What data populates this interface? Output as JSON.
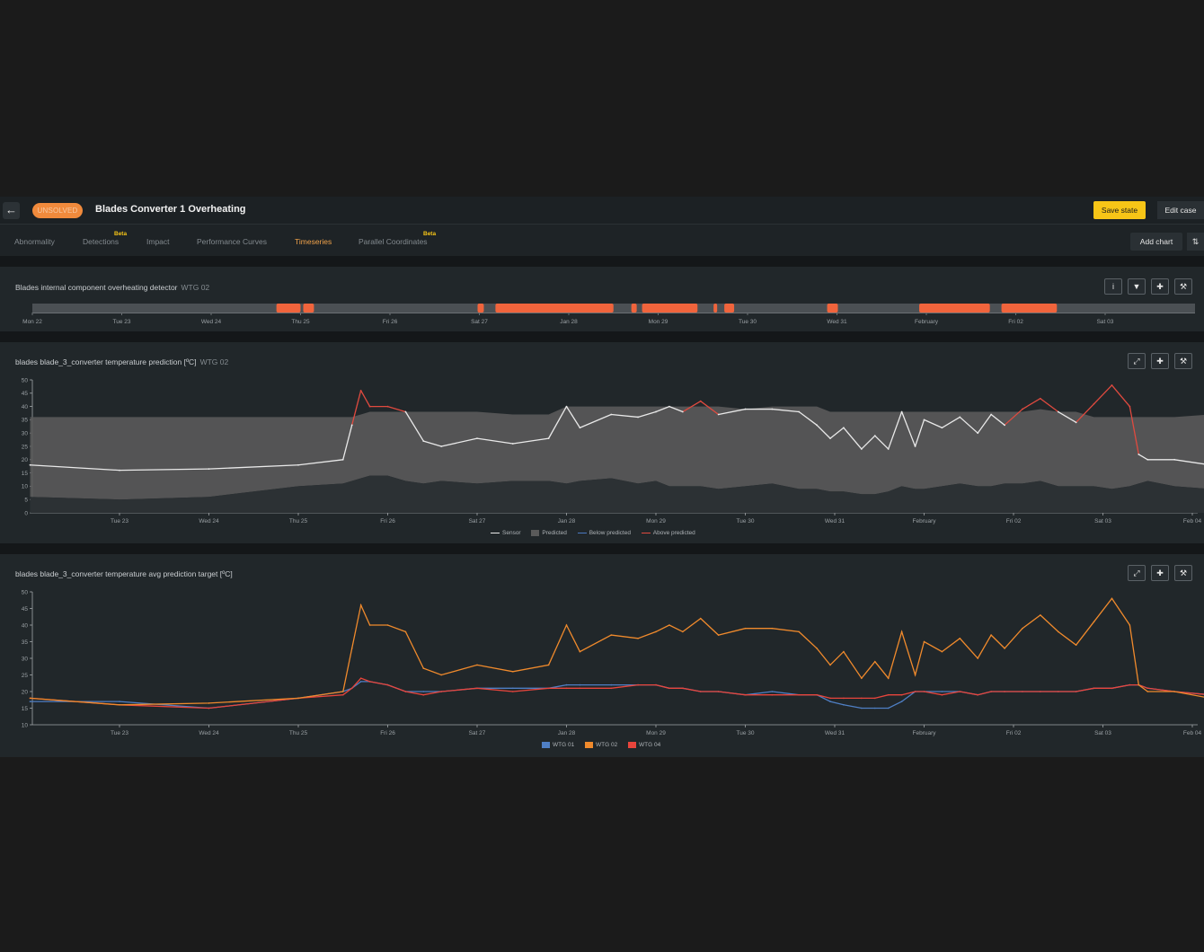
{
  "header": {
    "back_icon": "arrow-left-icon",
    "status": "UNSOLVED",
    "title": "Blades Converter 1 Overheating",
    "save_label": "Save state",
    "edit_label": "Edit case"
  },
  "tabs": [
    {
      "label": "Abnormality",
      "active": false,
      "beta": ""
    },
    {
      "label": "Detections",
      "active": false,
      "beta": "Beta"
    },
    {
      "label": "Impact",
      "active": false,
      "beta": ""
    },
    {
      "label": "Performance Curves",
      "active": false,
      "beta": ""
    },
    {
      "label": "Timeseries",
      "active": true,
      "beta": ""
    },
    {
      "label": "Parallel Coordinates",
      "active": false,
      "beta": "Beta"
    }
  ],
  "toolbar": {
    "add_chart_label": "Add chart",
    "sort_icon": "sort-arrows-icon"
  },
  "colors": {
    "accent": "#f7c517",
    "detection": "#f0643c",
    "sensor": "#e9e9e9",
    "predicted": "#5a5a5a",
    "below": "#4a78c0",
    "above": "#e04a3f",
    "wtg01": "#4f7fc4",
    "wtg02": "#f08a2c",
    "wtg04": "#e8453c"
  },
  "detector": {
    "title": "Blades internal component overheating detector",
    "turbine": "WTG 02",
    "icons": [
      "info-icon",
      "filter-icon",
      "move-icon",
      "wrench-icon"
    ],
    "ticks": [
      "Mon 22",
      "Tue 23",
      "Wed 24",
      "Thu 25",
      "Fri 26",
      "Sat 27",
      "Jan 28",
      "Mon 29",
      "Tue 30",
      "Wed 31",
      "February",
      "Fri 02",
      "Sat 03"
    ],
    "events": [
      [
        2.73,
        3.0
      ],
      [
        3.03,
        3.15
      ],
      [
        4.98,
        5.05
      ],
      [
        5.18,
        6.5
      ],
      [
        6.7,
        6.76
      ],
      [
        6.82,
        7.44
      ],
      [
        7.62,
        7.66
      ],
      [
        7.74,
        7.85
      ],
      [
        8.89,
        9.01
      ],
      [
        9.92,
        10.71
      ],
      [
        10.84,
        11.46
      ]
    ]
  },
  "prediction_chart": {
    "title": "blades blade_3_converter temperature prediction [ºC]",
    "turbine": "WTG 02",
    "icons": [
      "expand-icon",
      "move-icon",
      "wrench-icon"
    ],
    "legend": [
      "Sensor",
      "Predicted",
      "Below predicted",
      "Above predicted"
    ]
  },
  "avg_chart": {
    "title": "blades blade_3_converter temperature avg prediction target [ºC]",
    "icons": [
      "expand-icon",
      "move-icon",
      "wrench-icon"
    ],
    "legend": [
      "WTG 01",
      "WTG 02",
      "WTG 04"
    ]
  },
  "chart_data": [
    {
      "type": "area",
      "x_ticks": [
        "Tue 23",
        "Wed 24",
        "Thu 25",
        "Fri 26",
        "Sat 27",
        "Jan 28",
        "Mon 29",
        "Tue 30",
        "Wed 31",
        "February",
        "Fri 02",
        "Sat 03",
        "Feb 04"
      ],
      "ylim": [
        0,
        50
      ],
      "y_ticks": [
        0,
        5,
        10,
        15,
        20,
        25,
        30,
        35,
        40,
        45,
        50
      ],
      "x_days": [
        -1.0,
        0.0,
        1.0,
        2.0,
        2.5,
        2.6,
        2.7,
        2.8,
        3.0,
        3.2,
        3.4,
        3.6,
        4.0,
        4.4,
        4.8,
        5.0,
        5.15,
        5.5,
        5.8,
        6.0,
        6.15,
        6.3,
        6.5,
        6.7,
        7.0,
        7.3,
        7.6,
        7.8,
        7.95,
        8.1,
        8.3,
        8.45,
        8.6,
        8.75,
        8.9,
        9.0,
        9.2,
        9.4,
        9.6,
        9.75,
        9.9,
        10.1,
        10.3,
        10.5,
        10.7,
        10.9,
        11.1,
        11.3,
        11.4,
        11.5,
        11.8,
        12.2,
        12.5,
        12.85,
        13.0
      ],
      "series": [
        {
          "name": "Sensor",
          "values": [
            18,
            16,
            16.5,
            18,
            20,
            33,
            46,
            40,
            40,
            38,
            27,
            25,
            28,
            26,
            28,
            40,
            32,
            37,
            36,
            38,
            40,
            38,
            42,
            37,
            39,
            39,
            38,
            33,
            28,
            32,
            24,
            29,
            24,
            38,
            25,
            35,
            32,
            36,
            30,
            37,
            33,
            39,
            43,
            38,
            34,
            41,
            48,
            40,
            22,
            20,
            20,
            18,
            18,
            16,
            16.5
          ]
        },
        {
          "name": "Predicted (upper)",
          "values": [
            36,
            36,
            36,
            36,
            36,
            36,
            37,
            38,
            38,
            38,
            38,
            38,
            38,
            37,
            37,
            40,
            40,
            40,
            40,
            40,
            40,
            40,
            40,
            40,
            39,
            40,
            40,
            40,
            38,
            38,
            38,
            38,
            38,
            38,
            38,
            38,
            38,
            38,
            38,
            38,
            38,
            38,
            39,
            38,
            38,
            36,
            36,
            36,
            36,
            36,
            36,
            37,
            36,
            36,
            36
          ]
        },
        {
          "name": "Predicted (lower)",
          "values": [
            6,
            5,
            6,
            10,
            11,
            12,
            13,
            14,
            14,
            12,
            11,
            12,
            11,
            12,
            12,
            11,
            12,
            13,
            11,
            12,
            10,
            10,
            10,
            9,
            10,
            11,
            9,
            9,
            8,
            8,
            7,
            7,
            8,
            10,
            9,
            9,
            10,
            11,
            10,
            10,
            11,
            11,
            12,
            10,
            10,
            10,
            9,
            10,
            11,
            12,
            10,
            9,
            8,
            7,
            8
          ]
        }
      ]
    },
    {
      "type": "line",
      "x_ticks": [
        "Tue 23",
        "Wed 24",
        "Thu 25",
        "Fri 26",
        "Sat 27",
        "Jan 28",
        "Mon 29",
        "Tue 30",
        "Wed 31",
        "February",
        "Fri 02",
        "Sat 03",
        "Feb 04"
      ],
      "ylim": [
        10,
        50
      ],
      "y_ticks": [
        10,
        15,
        20,
        25,
        30,
        35,
        40,
        45,
        50
      ],
      "x_days": [
        -1.0,
        0.0,
        1.0,
        2.0,
        2.5,
        2.6,
        2.7,
        2.8,
        3.0,
        3.2,
        3.4,
        3.6,
        4.0,
        4.4,
        4.8,
        5.0,
        5.15,
        5.5,
        5.8,
        6.0,
        6.15,
        6.3,
        6.5,
        6.7,
        7.0,
        7.3,
        7.6,
        7.8,
        7.95,
        8.1,
        8.3,
        8.45,
        8.6,
        8.75,
        8.9,
        9.0,
        9.2,
        9.4,
        9.6,
        9.75,
        9.9,
        10.1,
        10.3,
        10.5,
        10.7,
        10.9,
        11.1,
        11.3,
        11.4,
        11.5,
        11.8,
        12.2,
        12.5,
        12.85,
        13.0
      ],
      "series": [
        {
          "name": "WTG 01",
          "values": [
            17,
            17,
            15,
            18,
            20,
            21,
            23,
            23,
            22,
            20,
            20,
            20,
            21,
            21,
            21,
            22,
            22,
            22,
            22,
            22,
            21,
            21,
            20,
            20,
            19,
            20,
            19,
            19,
            17,
            16,
            15,
            15,
            15,
            17,
            20,
            20,
            20,
            20,
            19,
            20,
            20,
            20,
            20,
            20,
            20,
            21,
            21,
            22,
            22,
            21,
            20,
            19,
            18,
            17,
            17
          ]
        },
        {
          "name": "WTG 02",
          "values": [
            18,
            16,
            16.5,
            18,
            20,
            33,
            46,
            40,
            40,
            38,
            27,
            25,
            28,
            26,
            28,
            40,
            32,
            37,
            36,
            38,
            40,
            38,
            42,
            37,
            39,
            39,
            38,
            33,
            28,
            32,
            24,
            29,
            24,
            38,
            25,
            35,
            32,
            36,
            30,
            37,
            33,
            39,
            43,
            38,
            34,
            41,
            48,
            40,
            22,
            20,
            20,
            18,
            18,
            16,
            16.5
          ]
        },
        {
          "name": "WTG 04",
          "values": [
            18,
            16,
            15,
            18,
            19,
            21,
            24,
            23,
            22,
            20,
            19,
            20,
            21,
            20,
            21,
            21,
            21,
            21,
            22,
            22,
            21,
            21,
            20,
            20,
            19,
            19,
            19,
            19,
            18,
            18,
            18,
            18,
            19,
            19,
            20,
            20,
            19,
            20,
            19,
            20,
            20,
            20,
            20,
            20,
            20,
            21,
            21,
            22,
            22,
            21,
            20,
            19,
            18,
            17,
            17
          ]
        }
      ]
    }
  ]
}
